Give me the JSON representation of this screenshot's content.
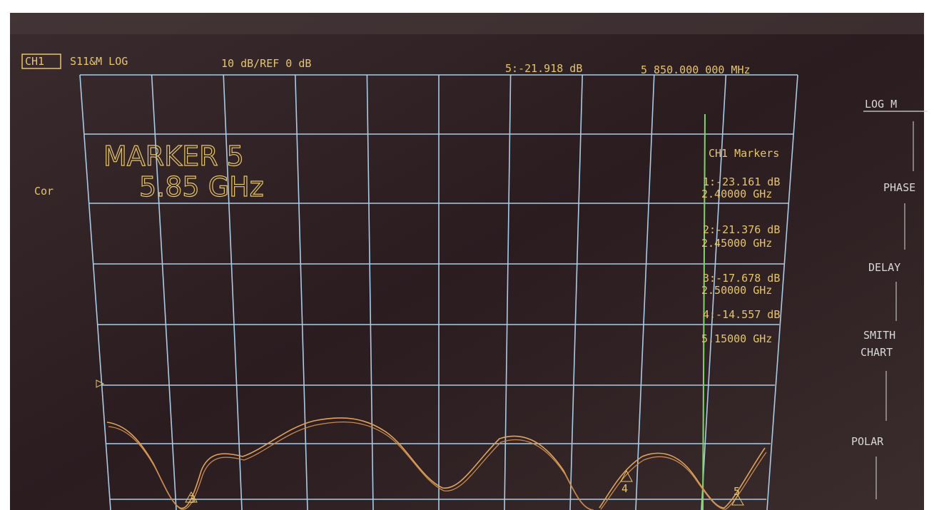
{
  "header": {
    "channel": "CH1",
    "measurement": "S11&M LOG",
    "scale": "10 dB/REF 0 dB",
    "marker_readout": "5:-21.918 dB",
    "marker_frequency": "5 850.000 000 MHz"
  },
  "left": {
    "status": "Cor"
  },
  "active_marker": {
    "label": "MARKER 5",
    "frequency": "5.85 GHz"
  },
  "marker_table": {
    "title": "CH1 Markers",
    "rows": [
      {
        "value": "1:-23.161 dB",
        "frequency": "2.40000 GHz"
      },
      {
        "value": "2:-21.376 dB",
        "frequency": "2.45000 GHz"
      },
      {
        "value": "3:-17.678 dB",
        "frequency": "2.50000 GHz"
      },
      {
        "value": "4:-14.557 dB",
        "frequency": "5.15000 GHz"
      }
    ]
  },
  "trace_markers": [
    "3",
    "4",
    "5"
  ],
  "softkeys": [
    "LOG M",
    "PHASE",
    "DELAY",
    "SMITH",
    "CHART",
    "POLAR"
  ]
}
